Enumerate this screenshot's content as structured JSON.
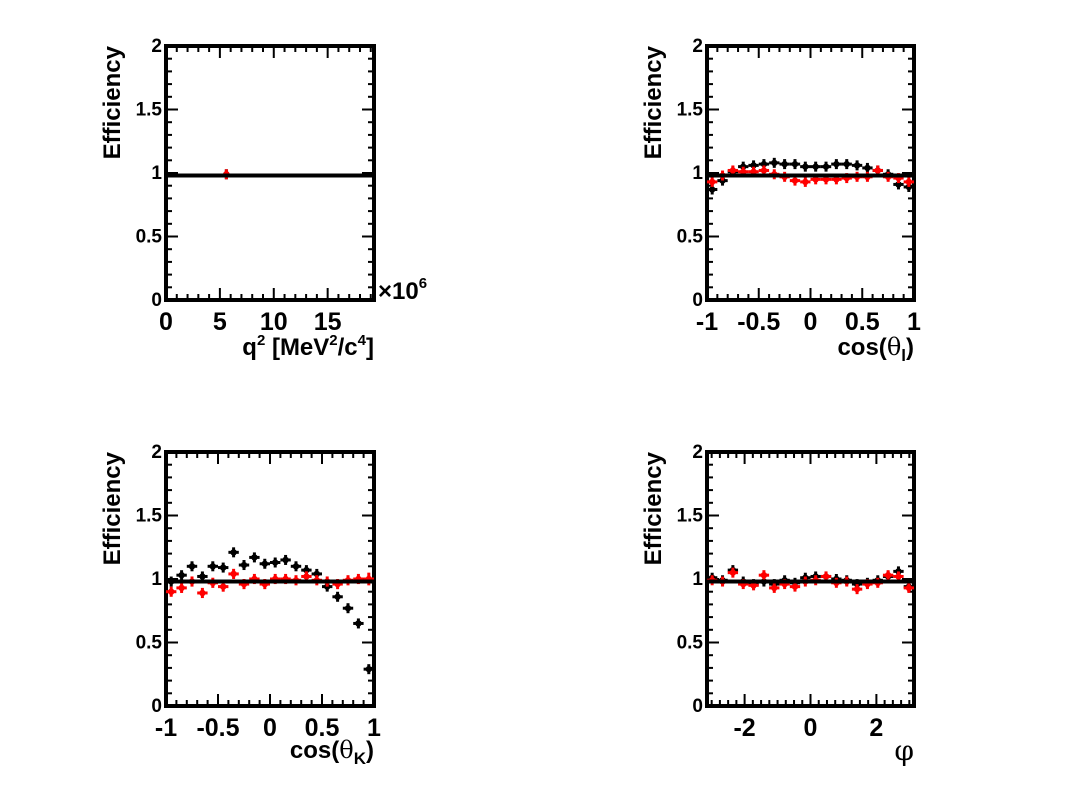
{
  "colors": {
    "black_series": "#000000",
    "red_series": "#ff0000",
    "fit_line": "#000000",
    "frame": "#000000"
  },
  "chart_data": [
    {
      "id": "q2",
      "type": "scatter",
      "ylabel": "Efficiency",
      "xlabel": {
        "pre": "q",
        "sup1": "2",
        "mid": " [MeV",
        "sup2": "2",
        "mid2": "/c",
        "sup3": "4",
        "post": "]"
      },
      "xlim": [
        0,
        19.3
      ],
      "ylim": [
        0,
        2
      ],
      "x_ticks": [
        {
          "v": 0,
          "label": "0"
        },
        {
          "v": 5,
          "label": "5"
        },
        {
          "v": 10,
          "label": "10"
        },
        {
          "v": 15,
          "label": "15"
        }
      ],
      "x_minor": 1,
      "y_ticks": [
        {
          "v": 0,
          "label": "0"
        },
        {
          "v": 0.5,
          "label": "0.5"
        },
        {
          "v": 1,
          "label": "1"
        },
        {
          "v": 1.5,
          "label": "1.5"
        },
        {
          "v": 2,
          "label": "2"
        }
      ],
      "y_minor": 0.1,
      "multiplier": {
        "base": "×10",
        "exp": "6"
      },
      "fit_level": 0.98,
      "series": [
        {
          "name": "black",
          "color": "#000000",
          "xerr": 0.1,
          "points": [
            [
              5.6,
              0.99,
              0.02
            ]
          ]
        },
        {
          "name": "red",
          "color": "#ff0000",
          "xerr": 0.1,
          "points": [
            [
              5.6,
              0.99,
              0.015
            ]
          ]
        }
      ]
    },
    {
      "id": "cos_theta_l",
      "type": "scatter",
      "ylabel": "Efficiency",
      "xlabel": {
        "pre": "cos(",
        "sym": "θ",
        "sub": "l",
        "post": ")"
      },
      "xlim": [
        -1,
        1
      ],
      "ylim": [
        0,
        2
      ],
      "x_ticks": [
        {
          "v": -1,
          "label": "-1"
        },
        {
          "v": -0.5,
          "label": "-0.5"
        },
        {
          "v": 0,
          "label": "0"
        },
        {
          "v": 0.5,
          "label": "0.5"
        },
        {
          "v": 1,
          "label": "1"
        }
      ],
      "x_minor": 0.1,
      "y_ticks": [
        {
          "v": 0,
          "label": "0"
        },
        {
          "v": 0.5,
          "label": "0.5"
        },
        {
          "v": 1,
          "label": "1"
        },
        {
          "v": 1.5,
          "label": "1.5"
        },
        {
          "v": 2,
          "label": "2"
        }
      ],
      "y_minor": 0.1,
      "fit_level": 0.98,
      "series": [
        {
          "name": "black",
          "color": "#000000",
          "xerr": 0.05,
          "points": [
            [
              -0.95,
              0.87,
              0.03
            ],
            [
              -0.85,
              0.94,
              0.03
            ],
            [
              -0.75,
              1.01,
              0.03
            ],
            [
              -0.65,
              1.05,
              0.03
            ],
            [
              -0.55,
              1.06,
              0.03
            ],
            [
              -0.45,
              1.07,
              0.03
            ],
            [
              -0.35,
              1.08,
              0.03
            ],
            [
              -0.25,
              1.07,
              0.03
            ],
            [
              -0.15,
              1.07,
              0.03
            ],
            [
              -0.05,
              1.05,
              0.03
            ],
            [
              0.05,
              1.05,
              0.03
            ],
            [
              0.15,
              1.05,
              0.03
            ],
            [
              0.25,
              1.07,
              0.03
            ],
            [
              0.35,
              1.07,
              0.03
            ],
            [
              0.45,
              1.06,
              0.03
            ],
            [
              0.55,
              1.04,
              0.03
            ],
            [
              0.65,
              1.02,
              0.03
            ],
            [
              0.75,
              0.99,
              0.03
            ],
            [
              0.85,
              0.91,
              0.03
            ],
            [
              0.95,
              0.89,
              0.03
            ]
          ]
        },
        {
          "name": "red",
          "color": "#ff0000",
          "xerr": 0.05,
          "points": [
            [
              -0.95,
              0.93,
              0.03
            ],
            [
              -0.85,
              0.98,
              0.03
            ],
            [
              -0.75,
              1.02,
              0.03
            ],
            [
              -0.65,
              1.01,
              0.03
            ],
            [
              -0.55,
              1.01,
              0.03
            ],
            [
              -0.45,
              1.02,
              0.03
            ],
            [
              -0.35,
              0.99,
              0.03
            ],
            [
              -0.25,
              0.97,
              0.03
            ],
            [
              -0.15,
              0.94,
              0.03
            ],
            [
              -0.05,
              0.93,
              0.03
            ],
            [
              0.05,
              0.95,
              0.03
            ],
            [
              0.15,
              0.95,
              0.03
            ],
            [
              0.25,
              0.95,
              0.03
            ],
            [
              0.35,
              0.96,
              0.03
            ],
            [
              0.45,
              0.97,
              0.03
            ],
            [
              0.55,
              0.97,
              0.03
            ],
            [
              0.65,
              1.02,
              0.03
            ],
            [
              0.75,
              0.97,
              0.03
            ],
            [
              0.85,
              0.96,
              0.03
            ],
            [
              0.95,
              0.93,
              0.03
            ]
          ]
        }
      ]
    },
    {
      "id": "cos_theta_k",
      "type": "scatter",
      "ylabel": "Efficiency",
      "xlabel": {
        "pre": "cos(",
        "sym": "θ",
        "sub": "K",
        "post": ")"
      },
      "xlim": [
        -1,
        1
      ],
      "ylim": [
        0,
        2
      ],
      "x_ticks": [
        {
          "v": -1,
          "label": "-1"
        },
        {
          "v": -0.5,
          "label": "-0.5"
        },
        {
          "v": 0,
          "label": "0"
        },
        {
          "v": 0.5,
          "label": "0.5"
        },
        {
          "v": 1,
          "label": "1"
        }
      ],
      "x_minor": 0.1,
      "y_ticks": [
        {
          "v": 0,
          "label": "0"
        },
        {
          "v": 0.5,
          "label": "0.5"
        },
        {
          "v": 1,
          "label": "1"
        },
        {
          "v": 1.5,
          "label": "1.5"
        },
        {
          "v": 2,
          "label": "2"
        }
      ],
      "y_minor": 0.1,
      "fit_level": 0.98,
      "series": [
        {
          "name": "black",
          "color": "#000000",
          "xerr": 0.05,
          "points": [
            [
              -0.95,
              0.98,
              0.03
            ],
            [
              -0.85,
              1.03,
              0.03
            ],
            [
              -0.75,
              1.1,
              0.03
            ],
            [
              -0.65,
              1.02,
              0.03
            ],
            [
              -0.55,
              1.1,
              0.03
            ],
            [
              -0.45,
              1.09,
              0.03
            ],
            [
              -0.35,
              1.21,
              0.03
            ],
            [
              -0.25,
              1.11,
              0.03
            ],
            [
              -0.15,
              1.17,
              0.03
            ],
            [
              -0.05,
              1.12,
              0.03
            ],
            [
              0.05,
              1.13,
              0.03
            ],
            [
              0.15,
              1.15,
              0.03
            ],
            [
              0.25,
              1.1,
              0.03
            ],
            [
              0.35,
              1.07,
              0.03
            ],
            [
              0.45,
              1.04,
              0.03
            ],
            [
              0.55,
              0.94,
              0.03
            ],
            [
              0.65,
              0.86,
              0.03
            ],
            [
              0.75,
              0.77,
              0.03
            ],
            [
              0.85,
              0.65,
              0.03
            ],
            [
              0.95,
              0.29,
              0.03
            ]
          ]
        },
        {
          "name": "red",
          "color": "#ff0000",
          "xerr": 0.05,
          "points": [
            [
              -0.95,
              0.9,
              0.04
            ],
            [
              -0.85,
              0.93,
              0.04
            ],
            [
              -0.75,
              0.98,
              0.04
            ],
            [
              -0.65,
              0.89,
              0.04
            ],
            [
              -0.55,
              0.97,
              0.04
            ],
            [
              -0.45,
              0.94,
              0.04
            ],
            [
              -0.35,
              1.04,
              0.04
            ],
            [
              -0.25,
              0.96,
              0.04
            ],
            [
              -0.15,
              1.0,
              0.04
            ],
            [
              -0.05,
              0.96,
              0.04
            ],
            [
              0.05,
              1.0,
              0.04
            ],
            [
              0.15,
              1.0,
              0.04
            ],
            [
              0.25,
              0.99,
              0.04
            ],
            [
              0.35,
              1.02,
              0.04
            ],
            [
              0.45,
              0.99,
              0.04
            ],
            [
              0.55,
              0.98,
              0.04
            ],
            [
              0.65,
              0.96,
              0.04
            ],
            [
              0.75,
              0.99,
              0.04
            ],
            [
              0.85,
              1.0,
              0.04
            ],
            [
              0.95,
              1.0,
              0.05
            ]
          ]
        }
      ]
    },
    {
      "id": "phi",
      "type": "scatter",
      "ylabel": "Efficiency",
      "xlabel": {
        "sym": "φ"
      },
      "xlim": [
        -3.1416,
        3.1416
      ],
      "ylim": [
        0,
        2
      ],
      "x_ticks": [
        {
          "v": -2,
          "label": "-2"
        },
        {
          "v": 0,
          "label": "0"
        },
        {
          "v": 2,
          "label": "2"
        }
      ],
      "x_minor": 0.25,
      "y_ticks": [
        {
          "v": 0,
          "label": "0"
        },
        {
          "v": 0.5,
          "label": "0.5"
        },
        {
          "v": 1,
          "label": "1"
        },
        {
          "v": 1.5,
          "label": "1.5"
        },
        {
          "v": 2,
          "label": "2"
        }
      ],
      "y_minor": 0.1,
      "fit_level": 0.98,
      "series": [
        {
          "name": "black",
          "color": "#000000",
          "xerr": 0.157,
          "points": [
            [
              -2.985,
              1.01,
              0.03
            ],
            [
              -2.67,
              0.99,
              0.03
            ],
            [
              -2.356,
              1.07,
              0.03
            ],
            [
              -2.042,
              0.98,
              0.03
            ],
            [
              -1.728,
              0.96,
              0.03
            ],
            [
              -1.414,
              0.98,
              0.03
            ],
            [
              -1.1,
              0.96,
              0.03
            ],
            [
              -0.785,
              0.99,
              0.03
            ],
            [
              -0.471,
              0.97,
              0.03
            ],
            [
              -0.157,
              1.01,
              0.03
            ],
            [
              0.157,
              1.02,
              0.03
            ],
            [
              0.471,
              1.02,
              0.03
            ],
            [
              0.785,
              1.0,
              0.03
            ],
            [
              1.1,
              0.99,
              0.03
            ],
            [
              1.414,
              0.96,
              0.03
            ],
            [
              1.728,
              0.97,
              0.03
            ],
            [
              2.042,
              0.99,
              0.03
            ],
            [
              2.356,
              1.02,
              0.03
            ],
            [
              2.67,
              1.06,
              0.03
            ],
            [
              2.985,
              0.94,
              0.03
            ]
          ]
        },
        {
          "name": "red",
          "color": "#ff0000",
          "xerr": 0.157,
          "points": [
            [
              -2.985,
              0.99,
              0.03
            ],
            [
              -2.67,
              0.98,
              0.03
            ],
            [
              -2.356,
              1.05,
              0.03
            ],
            [
              -2.042,
              0.96,
              0.03
            ],
            [
              -1.728,
              0.95,
              0.03
            ],
            [
              -1.414,
              1.03,
              0.03
            ],
            [
              -1.1,
              0.93,
              0.03
            ],
            [
              -0.785,
              0.96,
              0.03
            ],
            [
              -0.471,
              0.94,
              0.03
            ],
            [
              -0.157,
              0.98,
              0.03
            ],
            [
              0.157,
              0.99,
              0.03
            ],
            [
              0.471,
              1.02,
              0.03
            ],
            [
              0.785,
              0.97,
              0.03
            ],
            [
              1.1,
              0.98,
              0.03
            ],
            [
              1.414,
              0.92,
              0.03
            ],
            [
              1.728,
              0.96,
              0.03
            ],
            [
              2.042,
              0.97,
              0.03
            ],
            [
              2.356,
              1.03,
              0.03
            ],
            [
              2.67,
              1.02,
              0.03
            ],
            [
              2.985,
              0.93,
              0.03
            ]
          ]
        }
      ]
    }
  ]
}
